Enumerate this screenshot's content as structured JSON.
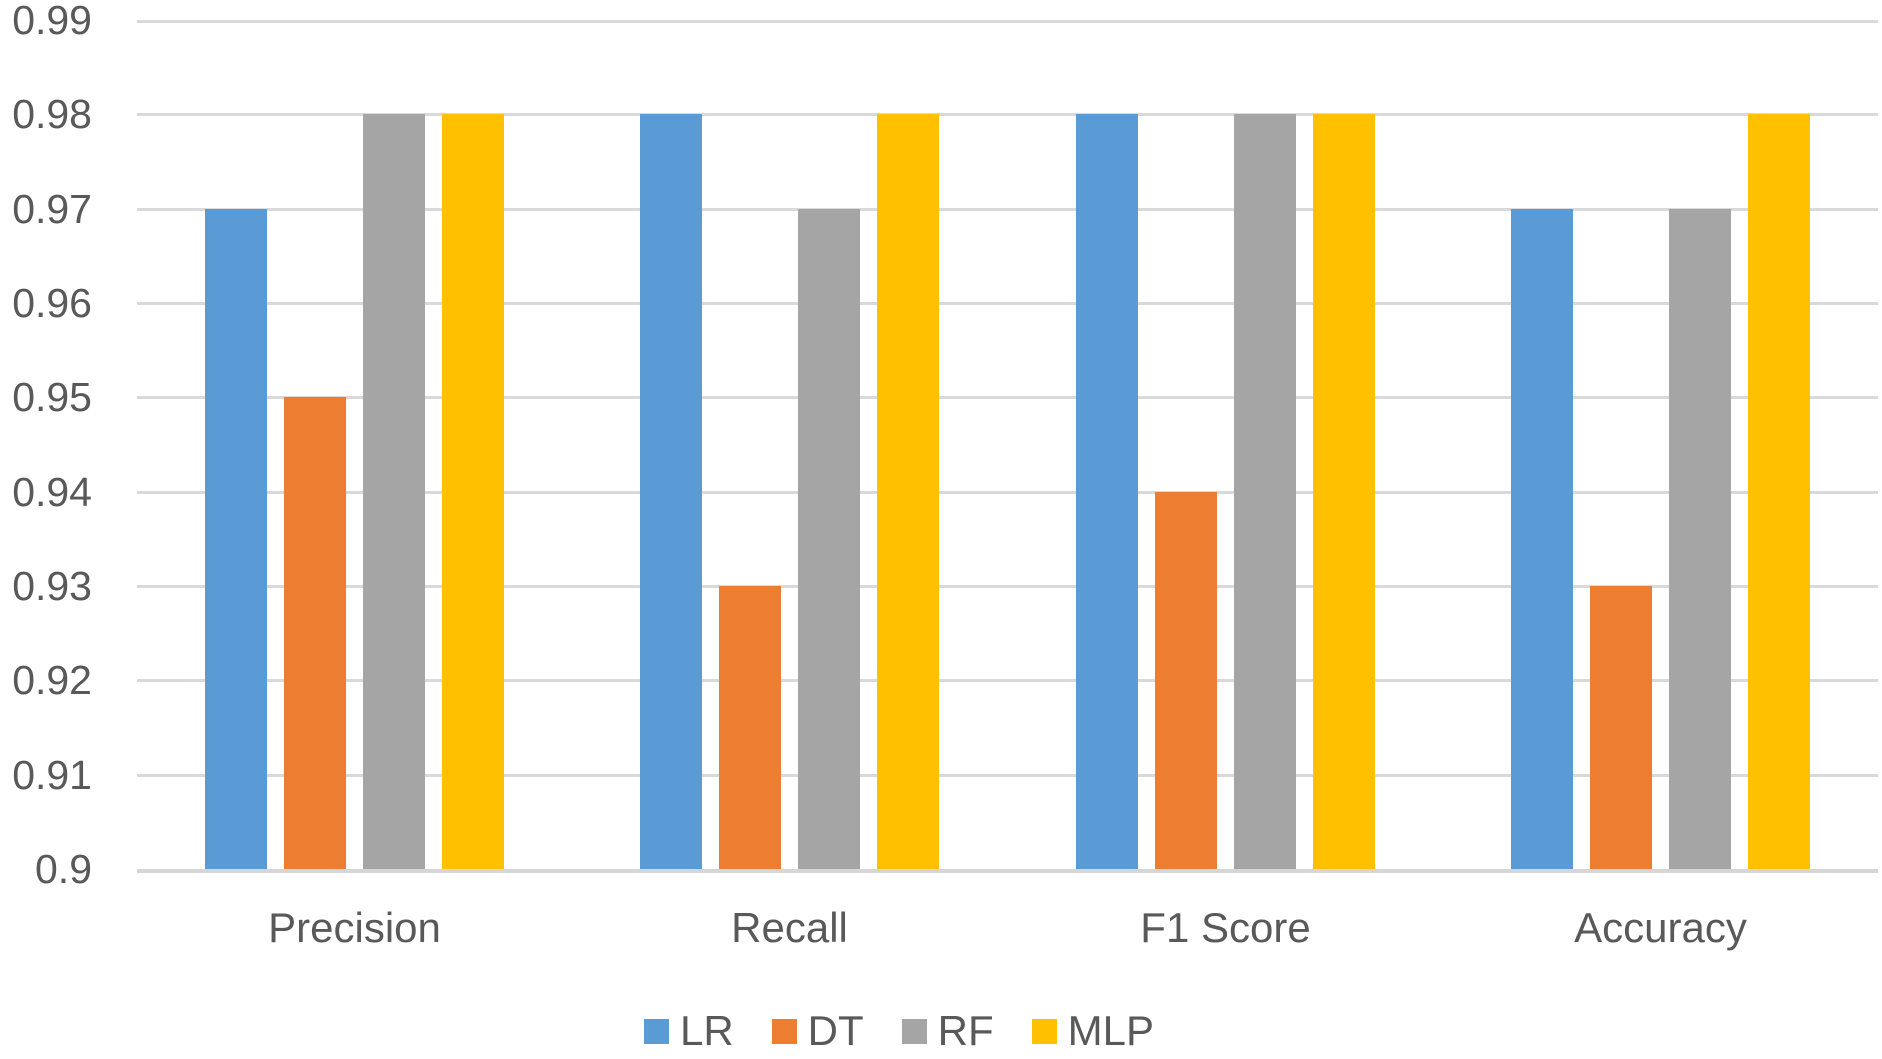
{
  "chart_data": {
    "type": "bar",
    "title": "",
    "xlabel": "",
    "ylabel": "",
    "categories": [
      "Precision",
      "Recall",
      "F1 Score",
      "Accuracy"
    ],
    "series": [
      {
        "name": "LR",
        "color": "#5B9BD5",
        "values": [
          0.97,
          0.98,
          0.98,
          0.97
        ]
      },
      {
        "name": "DT",
        "color": "#ED7D31",
        "values": [
          0.95,
          0.93,
          0.94,
          0.93
        ]
      },
      {
        "name": "RF",
        "color": "#A5A5A5",
        "values": [
          0.98,
          0.97,
          0.98,
          0.97
        ]
      },
      {
        "name": "MLP",
        "color": "#FFC000",
        "values": [
          0.98,
          0.98,
          0.98,
          0.98
        ]
      }
    ],
    "y_axis": {
      "min": 0.9,
      "max": 0.99,
      "step": 0.01,
      "tick_labels": [
        "0.99",
        "0.98",
        "0.97",
        "0.96",
        "0.95",
        "0.94",
        "0.93",
        "0.92",
        "0.91",
        "0.9"
      ]
    },
    "ylim": [
      0.9,
      0.99
    ],
    "grid": true,
    "legend_position": "bottom",
    "colors": {
      "grid_line": "#D9D9D9",
      "axis_text": "#595959",
      "background": "#FFFFFF"
    }
  }
}
